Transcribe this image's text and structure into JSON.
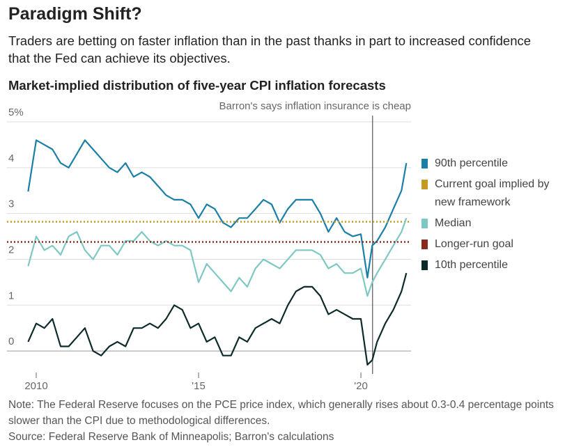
{
  "chart_data": {
    "type": "line",
    "title": "Paradigm Shift?",
    "subtitle": "Traders are betting on faster inflation than in the past thanks in part to increased confidence that the Fed can achieve its objectives.",
    "chart_title": "Market-implied distribution of five-year CPI inflation forecasts",
    "annotation": {
      "text": "Barron's says inflation insurance is cheap",
      "x": 2020.36
    },
    "note": "Note: The Federal Reserve focuses on the PCE price index, which generally rises about 0.3-0.4 percentage points slower than the CPI due to methodological differences.",
    "source": "Source: Federal Reserve Bank of Minneapolis; Barron's calculations",
    "xlim": [
      2009.5,
      2021.6
    ],
    "xticks": [
      {
        "value": 2010,
        "label": "2010"
      },
      {
        "value": 2015,
        "label": "'15"
      },
      {
        "value": 2020,
        "label": "'20"
      }
    ],
    "ylim": [
      -0.5,
      5
    ],
    "yticks": [
      {
        "value": 5,
        "label": "5%"
      },
      4,
      3,
      2,
      1,
      0
    ],
    "grid": true,
    "x": [
      2009.75,
      2010,
      2010.25,
      2010.5,
      2010.75,
      2011,
      2011.25,
      2011.5,
      2011.75,
      2012,
      2012.25,
      2012.5,
      2012.75,
      2013,
      2013.25,
      2013.5,
      2013.75,
      2014,
      2014.25,
      2014.5,
      2014.75,
      2015,
      2015.25,
      2015.5,
      2015.75,
      2016,
      2016.25,
      2016.5,
      2016.75,
      2017,
      2017.25,
      2017.5,
      2017.75,
      2018,
      2018.25,
      2018.5,
      2018.75,
      2019,
      2019.25,
      2019.5,
      2019.75,
      2020,
      2020.2,
      2020.35,
      2020.5,
      2020.75,
      2021,
      2021.25,
      2021.4
    ],
    "series": [
      {
        "name": "90th percentile",
        "color": "#1a7fa8",
        "values": [
          3.48,
          4.6,
          4.5,
          4.4,
          4.1,
          4.0,
          4.3,
          4.6,
          4.4,
          4.2,
          4.0,
          3.9,
          4.1,
          3.8,
          3.9,
          3.8,
          3.6,
          3.4,
          3.3,
          3.3,
          3.2,
          2.9,
          3.2,
          3.1,
          2.8,
          2.7,
          2.9,
          2.9,
          3.1,
          3.3,
          3.2,
          2.8,
          3.1,
          3.3,
          3.3,
          3.3,
          3.0,
          2.6,
          2.9,
          2.6,
          2.5,
          2.55,
          1.6,
          2.3,
          2.4,
          2.7,
          3.1,
          3.5,
          4.1
        ]
      },
      {
        "name": "Current goal implied by new framework",
        "color": "#c39a22",
        "value": 2.82,
        "style": "dotted"
      },
      {
        "name": "Median",
        "color": "#7ec8c4",
        "values": [
          1.85,
          2.5,
          2.2,
          2.3,
          2.1,
          2.5,
          2.6,
          2.2,
          2.0,
          2.3,
          2.3,
          2.1,
          2.4,
          2.4,
          2.6,
          2.4,
          2.3,
          2.4,
          2.3,
          2.3,
          2.2,
          1.5,
          1.9,
          1.7,
          1.5,
          1.3,
          1.6,
          1.4,
          1.8,
          2.0,
          1.9,
          1.8,
          2.0,
          2.2,
          2.2,
          2.2,
          2.1,
          1.8,
          1.9,
          1.7,
          1.7,
          1.8,
          1.2,
          1.5,
          1.7,
          2.0,
          2.3,
          2.6,
          2.9
        ]
      },
      {
        "name": "Longer-run goal",
        "color": "#8b2a1a",
        "value": 2.38,
        "style": "dotted"
      },
      {
        "name": "10th percentile",
        "color": "#0d2a2a",
        "values": [
          0.2,
          0.6,
          0.5,
          0.7,
          0.1,
          0.1,
          0.3,
          0.5,
          0.0,
          -0.1,
          0.1,
          0.2,
          0.1,
          0.5,
          0.5,
          0.6,
          0.5,
          0.7,
          1.0,
          0.9,
          0.5,
          0.6,
          0.2,
          0.3,
          -0.1,
          -0.1,
          0.3,
          0.2,
          0.5,
          0.6,
          0.7,
          0.6,
          1.0,
          1.3,
          1.4,
          1.4,
          1.2,
          0.8,
          0.9,
          0.8,
          0.7,
          0.7,
          -0.3,
          -0.2,
          0.2,
          0.6,
          0.9,
          1.3,
          1.7
        ]
      }
    ]
  }
}
